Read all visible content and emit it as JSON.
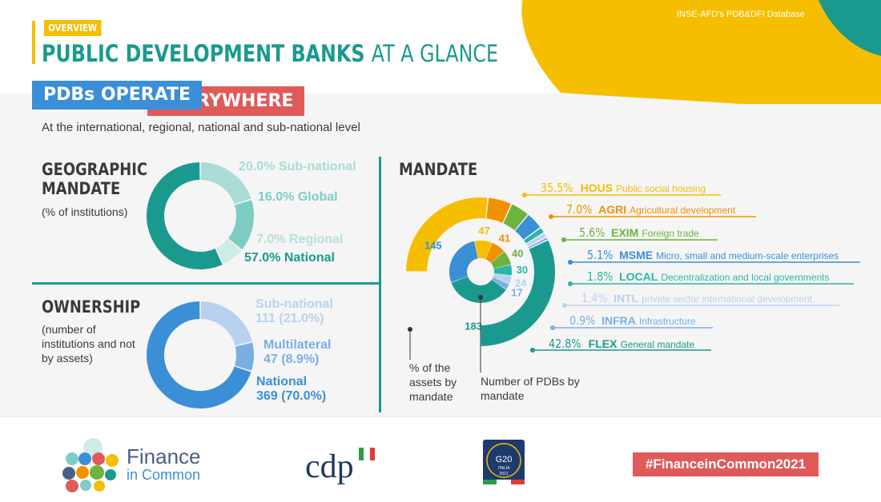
{
  "header": {
    "tag": "OVERVIEW",
    "title_bold": "PUBLIC DEVELOPMENT BANKS",
    "title_light": "AT A GLANCE",
    "source": "INSE-AFD's PDB&DFI Database"
  },
  "intro": {
    "box1": "PDBs OPERATE",
    "box2": "EVERYWHERE",
    "subtitle": "At the international, regional, national and sub-national level"
  },
  "colors": {
    "teal": "#1a9a8f",
    "teal_light": "#7ecdc4",
    "teal_pale": "#a9dcd6",
    "teal_faint": "#cdebe7",
    "blue": "#3a8fd6",
    "blue_light": "#7aaee3",
    "blue_pale": "#b9d1f1",
    "yellow": "#f5be00",
    "orange": "#f29100",
    "green": "#6cb33f",
    "red": "#e05a5a"
  },
  "chart_data": [
    {
      "type": "pie",
      "title": "GEOGRAPHIC MANDATE",
      "subtitle": "(% of institutions)",
      "slices": [
        {
          "name": "National",
          "value": 57.0,
          "label": "57.0% National",
          "color": "#1a9a8f"
        },
        {
          "name": "Sub-national",
          "value": 20.0,
          "label": "20.0% Sub-national",
          "color": "#a9dcd6"
        },
        {
          "name": "Global",
          "value": 16.0,
          "label": "16.0% Global",
          "color": "#7ecdc4"
        },
        {
          "name": "Regional",
          "value": 7.0,
          "label": "7.0% Regional",
          "color": "#cdebe7"
        }
      ]
    },
    {
      "type": "pie",
      "title": "OWNERSHIP",
      "subtitle": "(number of institutions and not by assets)",
      "slices": [
        {
          "name": "National",
          "value": 369,
          "percent": 70.0,
          "label_name": "National",
          "label_value": "369 (70.0%)",
          "color": "#3a8fd6"
        },
        {
          "name": "Sub-national",
          "value": 111,
          "percent": 21.0,
          "label_name": "Sub-national",
          "label_value": "111 (21.0%)",
          "color": "#b9d1f1"
        },
        {
          "name": "Multilateral",
          "value": 47,
          "percent": 8.9,
          "label_name": "Multilateral",
          "label_value": "47 (8.9%)",
          "color": "#7aaee3"
        }
      ]
    },
    {
      "type": "pie",
      "title": "MANDATE",
      "outer_caption": "% of the assets by mandate",
      "inner_caption": "Number of PDBs by mandate",
      "mandates": [
        {
          "code": "HOUS",
          "desc": "Public social housing",
          "asset_pct": 35.5,
          "pct_label": "35.5%",
          "count": 47,
          "color": "#f5be00"
        },
        {
          "code": "AGRI",
          "desc": "Agricultural development",
          "asset_pct": 7.0,
          "pct_label": "7.0%",
          "count": 41,
          "color": "#f29100"
        },
        {
          "code": "EXIM",
          "desc": "Foreign trade",
          "asset_pct": 5.6,
          "pct_label": "5.6%",
          "count": 40,
          "color": "#6cb33f"
        },
        {
          "code": "MSME",
          "desc": "Micro, small and medium-scale enterprises",
          "asset_pct": 5.1,
          "pct_label": "5.1%",
          "count": 145,
          "color": "#3a8fd6"
        },
        {
          "code": "LOCAL",
          "desc": "Decentralization and local governments",
          "asset_pct": 1.8,
          "pct_label": "1.8%",
          "count": 30,
          "color": "#2bb5a8"
        },
        {
          "code": "INTL",
          "desc": "private sector international development",
          "asset_pct": 1.4,
          "pct_label": "1.4%",
          "count": 24,
          "color": "#b9d1f1"
        },
        {
          "code": "INFRA",
          "desc": "Infrastructure",
          "asset_pct": 0.9,
          "pct_label": "0.9%",
          "count": 17,
          "color": "#7aaee3"
        },
        {
          "code": "FLEX",
          "desc": "General mandate",
          "asset_pct": 42.8,
          "pct_label": "42.8%",
          "count": 183,
          "color": "#1a9a8f"
        }
      ]
    }
  ],
  "footer": {
    "fic_name": "Finance",
    "fic_sub": "in Common",
    "cdp": "cdp",
    "g20_top": "G20",
    "g20_mid": "ITALIA",
    "g20_year": "2021",
    "hashtag": "#FinanceinCommon2021"
  }
}
